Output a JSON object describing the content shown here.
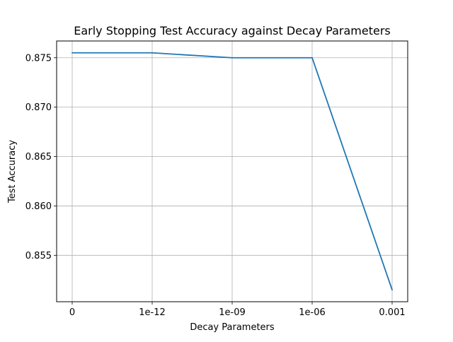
{
  "chart_data": {
    "type": "line",
    "title": "Early Stopping Test Accuracy against Decay Parameters",
    "xlabel": "Decay Parameters",
    "ylabel": "Test Accuracy",
    "categories": [
      "0",
      "1e-12",
      "1e-09",
      "1e-06",
      "0.001"
    ],
    "series": [
      {
        "values": [
          0.8755,
          0.8755,
          0.875,
          0.875,
          0.8515
        ],
        "color": "#1f77b4"
      }
    ],
    "y_ticks": [
      0.855,
      0.86,
      0.865,
      0.87,
      0.875
    ],
    "y_tick_labels": [
      "0.855",
      "0.860",
      "0.865",
      "0.870",
      "0.875"
    ],
    "ylim": [
      0.8503,
      0.8767
    ],
    "grid": true
  }
}
